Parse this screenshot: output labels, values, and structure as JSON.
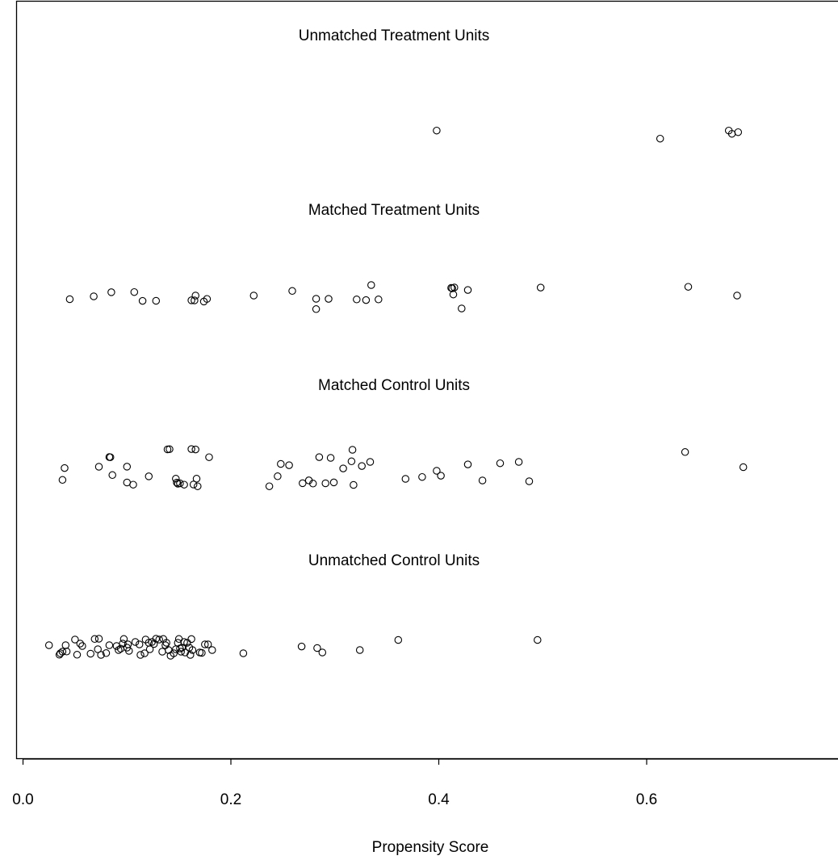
{
  "chart_data": {
    "type": "scatter",
    "xlabel": "Propensity Score",
    "xlim": [
      0.0,
      0.78
    ],
    "xticks": [
      0.0,
      0.2,
      0.4,
      0.6
    ],
    "xtick_labels": [
      "0.0",
      "0.2",
      "0.4",
      "0.6"
    ],
    "grid": false,
    "point_color": "#000000",
    "groups": [
      {
        "label": "Unmatched Treatment Units",
        "x": [
          0.398,
          0.613,
          0.679,
          0.682,
          0.688
        ],
        "jitter": [
          0.33,
          -0.67,
          0.33,
          -0.07,
          0.13
        ]
      },
      {
        "label": "Matched Treatment Units",
        "x": [
          0.045,
          0.068,
          0.085,
          0.107,
          0.115,
          0.128,
          0.162,
          0.165,
          0.166,
          0.174,
          0.177,
          0.222,
          0.259,
          0.282,
          0.282,
          0.294,
          0.321,
          0.33,
          0.335,
          0.342,
          0.412,
          0.413,
          0.414,
          0.415,
          0.422,
          0.428,
          0.498,
          0.64,
          0.687
        ],
        "jitter": [
          -0.55,
          -0.2,
          0.31,
          0.33,
          -0.76,
          -0.75,
          -0.69,
          -0.7,
          -0.1,
          -0.84,
          -0.52,
          -0.1,
          0.47,
          -0.5,
          -1.78,
          -0.51,
          -0.58,
          -0.66,
          1.2,
          -0.58,
          0.85,
          0.8,
          0.03,
          0.9,
          -1.7,
          0.59,
          0.89,
          0.98,
          -0.1
        ]
      },
      {
        "label": "Matched Control Units",
        "x": [
          0.038,
          0.04,
          0.073,
          0.083,
          0.084,
          0.086,
          0.1,
          0.1,
          0.106,
          0.121,
          0.139,
          0.141,
          0.147,
          0.148,
          0.149,
          0.151,
          0.155,
          0.162,
          0.164,
          0.166,
          0.167,
          0.168,
          0.179,
          0.237,
          0.245,
          0.248,
          0.256,
          0.269,
          0.275,
          0.279,
          0.285,
          0.291,
          0.296,
          0.299,
          0.308,
          0.316,
          0.317,
          0.318,
          0.326,
          0.334,
          0.368,
          0.384,
          0.398,
          0.402,
          0.428,
          0.442,
          0.459,
          0.477,
          0.487,
          0.637,
          0.693
        ],
        "jitter": [
          -0.93,
          0.54,
          0.7,
          1.9,
          1.88,
          -0.33,
          0.71,
          -1.25,
          -1.52,
          -0.49,
          2.85,
          2.87,
          -0.78,
          -1.26,
          -1.4,
          -1.35,
          -1.52,
          2.89,
          -1.5,
          2.84,
          -0.78,
          -1.72,
          1.88,
          -1.72,
          -0.48,
          1.05,
          0.89,
          -1.34,
          -0.99,
          -1.38,
          1.89,
          -1.35,
          1.8,
          -1.24,
          0.49,
          1.37,
          2.8,
          -1.55,
          0.79,
          1.3,
          -0.8,
          -0.57,
          0.2,
          -0.41,
          0.99,
          -1.0,
          1.13,
          1.3,
          -1.1,
          2.52,
          0.65
        ]
      },
      {
        "label": "Unmatched Control Units",
        "x": [
          0.025,
          0.035,
          0.036,
          0.038,
          0.041,
          0.042,
          0.05,
          0.052,
          0.055,
          0.057,
          0.065,
          0.069,
          0.072,
          0.073,
          0.075,
          0.08,
          0.083,
          0.09,
          0.092,
          0.094,
          0.096,
          0.097,
          0.1,
          0.101,
          0.102,
          0.108,
          0.112,
          0.113,
          0.117,
          0.118,
          0.121,
          0.122,
          0.124,
          0.126,
          0.128,
          0.131,
          0.134,
          0.135,
          0.137,
          0.138,
          0.14,
          0.142,
          0.145,
          0.147,
          0.149,
          0.15,
          0.151,
          0.152,
          0.153,
          0.155,
          0.156,
          0.158,
          0.16,
          0.161,
          0.162,
          0.163,
          0.17,
          0.172,
          0.175,
          0.178,
          0.182,
          0.212,
          0.268,
          0.283,
          0.288,
          0.324,
          0.361,
          0.495
        ],
        "jitter": [
          0.2,
          -0.98,
          -0.8,
          -0.6,
          0.2,
          -0.58,
          0.9,
          -0.98,
          0.4,
          0.1,
          -0.85,
          0.97,
          -0.3,
          1.0,
          -1.0,
          -0.78,
          0.2,
          0.1,
          -0.4,
          -0.23,
          0.4,
          0.97,
          -0.1,
          0.3,
          -0.5,
          0.6,
          0.3,
          -1.0,
          -0.8,
          0.9,
          0.5,
          -0.3,
          0.6,
          0.35,
          1.0,
          0.9,
          -0.6,
          0.97,
          0.2,
          0.5,
          -0.4,
          -1.1,
          -0.8,
          -0.3,
          0.5,
          0.97,
          -0.2,
          -0.6,
          -0.1,
          0.6,
          -0.7,
          0.5,
          -0.1,
          -1.0,
          0.96,
          -0.4,
          -0.7,
          -0.75,
          0.3,
          0.3,
          -0.4,
          -0.8,
          0.04,
          -0.15,
          -0.7,
          -0.4,
          0.85,
          0.85
        ]
      }
    ]
  }
}
